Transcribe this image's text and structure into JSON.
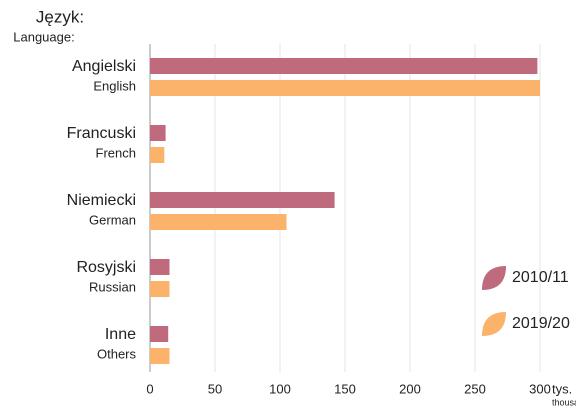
{
  "chart_data": {
    "type": "bar",
    "orientation": "horizontal",
    "title": "Język:",
    "subtitle": "Language:",
    "categories": [
      "Angielski",
      "Francuski",
      "Niemiecki",
      "Rosyjski",
      "Inne"
    ],
    "categories_sub": [
      "English",
      "French",
      "German",
      "Russian",
      "Others"
    ],
    "series": [
      {
        "name": "2010/11",
        "color": "#c06a7e",
        "values": [
          298,
          12,
          142,
          15,
          14
        ]
      },
      {
        "name": "2019/20",
        "color": "#fbb36b",
        "values": [
          300,
          11,
          105,
          15,
          15
        ]
      }
    ],
    "xlim": [
      0,
      300
    ],
    "xticks": [
      0,
      50,
      100,
      150,
      200,
      250,
      300
    ],
    "x_unit": "tys.",
    "x_unit_sub": "thousand",
    "grid": true,
    "legend": "right"
  }
}
